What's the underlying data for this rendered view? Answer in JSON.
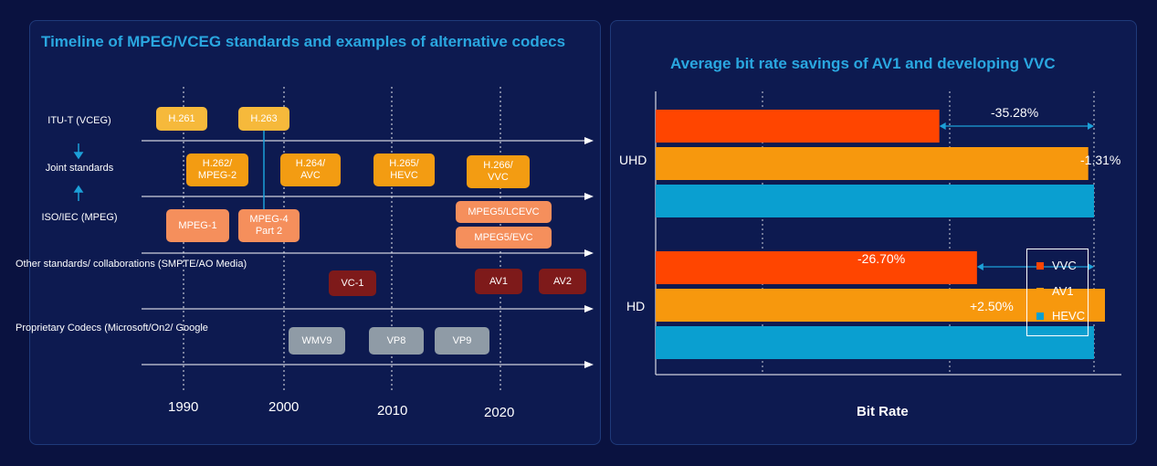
{
  "left": {
    "title": "Timeline of MPEG/VCEG standards and examples of alternative codecs",
    "rows": [
      {
        "label": "ITU-T\n(VCEG)"
      },
      {
        "label": "Joint\nstandards"
      },
      {
        "label": "ISO/IEC\n(MPEG)"
      },
      {
        "label": "Other standards/\ncollaborations\n(SMPTE/AO Media)"
      },
      {
        "label": "Proprietary Codecs\n(Microsoft/On2/\nGoogle"
      }
    ],
    "years": [
      "1990",
      "2000",
      "2010",
      "2020"
    ],
    "codecs": {
      "h261": "H.261",
      "h263": "H.263",
      "h262": "H.262/\nMPEG-2",
      "h264": "H.264/\nAVC",
      "h265": "H.265/\nHEVC",
      "h266": "H.266/\nVVC",
      "mpeg1": "MPEG-1",
      "mpeg4": "MPEG-4\nPart 2",
      "mpeg5lcevc": "MPEG5/LCEVC",
      "mpeg5evc": "MPEG5/EVC",
      "vc1": "VC-1",
      "av1": "AV1",
      "av2": "AV2",
      "wmv9": "WMV9",
      "vp8": "VP8",
      "vp9": "VP9"
    }
  },
  "chart_data": {
    "type": "bar",
    "orientation": "horizontal",
    "title": "Average bit rate savings of AV1 and developing VVC",
    "xlabel": "Bit Rate",
    "categories": [
      "UHD",
      "HD"
    ],
    "series": [
      {
        "name": "VVC",
        "color": "#ff4500",
        "values": [
          64.72,
          73.3
        ]
      },
      {
        "name": "AV1",
        "color": "#f7980d",
        "values": [
          98.69,
          102.5
        ]
      },
      {
        "name": "HEVC",
        "color": "#0a9fd0",
        "values": [
          100,
          100
        ]
      }
    ],
    "xlim": [
      0,
      100
    ],
    "annotations": {
      "uhd_vvc": "-35.28%",
      "uhd_av1": "-1.31%",
      "hd_vvc": "-26.70%",
      "hd_av1": "+2.50%"
    },
    "legend": "right"
  }
}
